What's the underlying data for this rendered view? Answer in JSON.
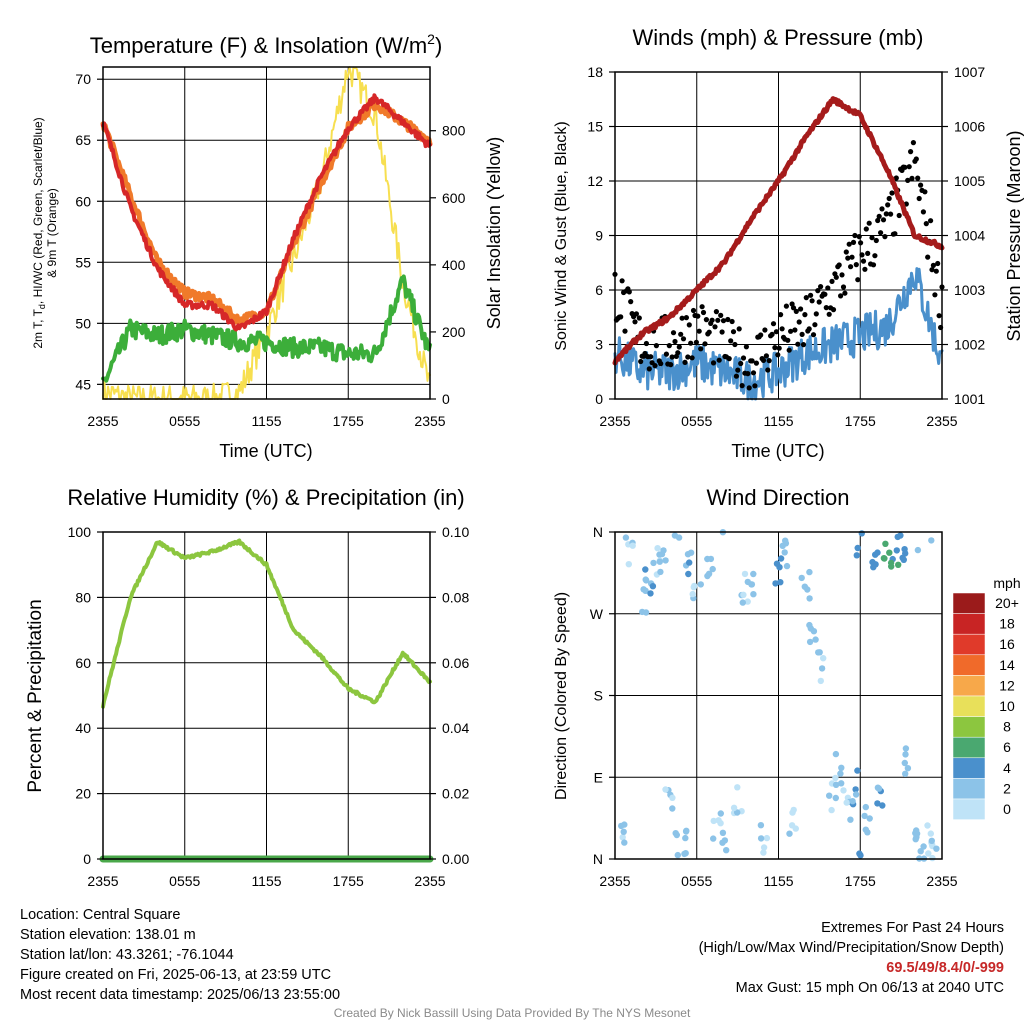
{
  "time_ticks": [
    "2355",
    "0555",
    "1155",
    "1755",
    "2355"
  ],
  "xlabel": "Time (UTC)",
  "panels": {
    "temperature": {
      "title": "Temperature (F) & Insolation (W/m",
      "title_sup": "2",
      "title_close": ")",
      "ylabel_left_lines": [
        "2m T, T",
        "d",
        ", HI/WC (Red, Green, Scarlet/Blue)",
        "& 9m T (Orange)"
      ],
      "ylabel_right": "Solar Insolation (Yellow)",
      "left_ticks": [
        "45",
        "50",
        "55",
        "60",
        "65",
        "70"
      ],
      "right_ticks": [
        "0",
        "200",
        "400",
        "600",
        "800"
      ]
    },
    "winds": {
      "title": "Winds (mph) & Pressure (mb)",
      "ylabel_left": "Sonic Wind & Gust (Blue, Black)",
      "ylabel_right": "Station Pressure (Maroon)",
      "left_ticks": [
        "0",
        "3",
        "6",
        "9",
        "12",
        "15",
        "18"
      ],
      "right_ticks": [
        "1001",
        "1002",
        "1003",
        "1004",
        "1005",
        "1006",
        "1007"
      ]
    },
    "humidity": {
      "title": "Relative Humidity (%) & Precipitation (in)",
      "ylabel_left": "Percent & Precipitation",
      "left_ticks": [
        "0",
        "20",
        "40",
        "60",
        "80",
        "100"
      ],
      "right_ticks": [
        "0.00",
        "0.02",
        "0.04",
        "0.06",
        "0.08",
        "0.10"
      ]
    },
    "direction": {
      "title": "Wind Direction",
      "ylabel_left": "Direction (Colored By Speed)",
      "left_ticks": [
        "N",
        "E",
        "S",
        "W",
        "N"
      ],
      "legend_title": "mph",
      "legend_labels": [
        "20+",
        "18",
        "16",
        "14",
        "12",
        "10",
        "8",
        "6",
        "4",
        "2",
        "0"
      ]
    }
  },
  "colors": {
    "temp_red": "#d62728",
    "temp_orange": "#f07a2a",
    "dewpoint_green": "#3cae3a",
    "solar_yellow": "#f7df50",
    "wind_blue": "#4a90cc",
    "gust_black": "#000000",
    "pressure_maroon": "#a51b1b",
    "humidity_green": "#8cc63f",
    "precip_green": "#4aa84a",
    "speed_scale": [
      "#bfe3f7",
      "#8cc3e8",
      "#4a90cc",
      "#4aa870",
      "#8cc63f",
      "#e8e05a",
      "#f7a84a",
      "#f06a2a",
      "#e03a2a",
      "#c82424",
      "#9b1b1b"
    ]
  },
  "chart_data": [
    {
      "type": "line",
      "title": "Temperature (F) & Insolation (W/m2)",
      "xlabel": "Time (UTC)",
      "ylabel": "2m T, Td, HI/WC (Red, Green, Scarlet/Blue) & 9m T (Orange)",
      "y2label": "Solar Insolation (Yellow)",
      "x": [
        "2355",
        "0155",
        "0355",
        "0555",
        "0755",
        "0955",
        "1155",
        "1355",
        "1555",
        "1755",
        "1955",
        "2155",
        "2355"
      ],
      "ylim": [
        43.8,
        71
      ],
      "y2lim": [
        0,
        990
      ],
      "series": [
        {
          "name": "2m T",
          "color": "red",
          "axis": "left",
          "values": [
            66.5,
            59.5,
            54.5,
            51.5,
            51.5,
            49.5,
            51,
            57,
            62,
            66,
            68.5,
            66.5,
            64.5
          ]
        },
        {
          "name": "9m T",
          "color": "orange",
          "axis": "left",
          "values": [
            66.5,
            60.5,
            55,
            52.5,
            52,
            50.2,
            51,
            56.5,
            61.5,
            66,
            68,
            66.5,
            65
          ]
        },
        {
          "name": "Td",
          "color": "green",
          "axis": "left",
          "values": [
            45,
            49.5,
            49,
            49.5,
            49,
            48.5,
            48.5,
            48,
            48,
            47.5,
            47.5,
            53.5,
            47.5
          ]
        },
        {
          "name": "Solar Insolation",
          "color": "yellow",
          "axis": "right",
          "values": [
            20,
            0,
            0,
            0,
            0,
            20,
            200,
            420,
            650,
            990,
            850,
            350,
            30
          ]
        }
      ]
    },
    {
      "type": "line",
      "title": "Winds (mph) & Pressure (mb)",
      "xlabel": "Time (UTC)",
      "ylabel": "Sonic Wind & Gust (Blue, Black)",
      "y2label": "Station Pressure (Maroon)",
      "x": [
        "2355",
        "0155",
        "0355",
        "0555",
        "0755",
        "0955",
        "1155",
        "1355",
        "1555",
        "1755",
        "1955",
        "2155",
        "2355"
      ],
      "ylim": [
        0,
        18
      ],
      "y2lim": [
        1001,
        1007
      ],
      "series": [
        {
          "name": "Sonic Wind",
          "color": "blue",
          "axis": "left",
          "values": [
            2.5,
            1.5,
            1.5,
            2,
            1.5,
            1,
            1.5,
            2.5,
            3,
            3.5,
            4,
            7,
            2
          ]
        },
        {
          "name": "Gust",
          "color": "black",
          "axis": "left",
          "values": [
            6,
            3,
            3,
            4,
            3,
            2,
            3.5,
            4,
            6,
            8,
            9.5,
            13,
            5
          ]
        },
        {
          "name": "Station Pressure",
          "color": "maroon",
          "axis": "right",
          "values": [
            1001.7,
            1002.2,
            1002.5,
            1003,
            1003.5,
            1004.3,
            1005,
            1005.8,
            1006.5,
            1006.2,
            1005.2,
            1004,
            1003.8
          ]
        }
      ]
    },
    {
      "type": "line",
      "title": "Relative Humidity (%) & Precipitation (in)",
      "ylabel": "Percent & Precipitation",
      "x": [
        "2355",
        "0155",
        "0355",
        "0555",
        "0755",
        "0955",
        "1155",
        "1355",
        "1555",
        "1755",
        "1955",
        "2155",
        "2355"
      ],
      "ylim": [
        0,
        100
      ],
      "y2lim": [
        0,
        0.1
      ],
      "series": [
        {
          "name": "Relative Humidity",
          "color": "light green",
          "axis": "left",
          "values": [
            47,
            80,
            97,
            92,
            94,
            97,
            90,
            70,
            62,
            52,
            48,
            63,
            54
          ]
        },
        {
          "name": "Precipitation",
          "color": "green",
          "axis": "right",
          "values": [
            0,
            0,
            0,
            0,
            0,
            0,
            0,
            0,
            0,
            0,
            0,
            0,
            0
          ]
        }
      ]
    },
    {
      "type": "scatter",
      "title": "Wind Direction",
      "ylabel": "Direction (Colored By Speed)",
      "y_ticks": [
        "N",
        "E",
        "S",
        "W",
        "N"
      ],
      "color_scale_label": "mph",
      "series": [
        {
          "name": "Direction",
          "points": [
            [
              0.5,
              30,
              1
            ],
            [
              1,
              340,
              1
            ],
            [
              2,
              290,
              2
            ],
            [
              2.5,
              305,
              3
            ],
            [
              3,
              330,
              1
            ],
            [
              3.5,
              320,
              2
            ],
            [
              4,
              60,
              1
            ],
            [
              4.5,
              10,
              1
            ],
            [
              5,
              20,
              2
            ],
            [
              5.5,
              320,
              3
            ],
            [
              6,
              300,
              1
            ],
            [
              7,
              330,
              2
            ],
            [
              7.5,
              40,
              1
            ],
            [
              8,
              15,
              2
            ],
            [
              9,
              60,
              1
            ],
            [
              9.5,
              300,
              1
            ],
            [
              10,
              310,
              2
            ],
            [
              11,
              20,
              1
            ],
            [
              12,
              320,
              3
            ],
            [
              12.5,
              340,
              2
            ],
            [
              13,
              40,
              1
            ],
            [
              14,
              300,
              2
            ],
            [
              14.5,
              250,
              2
            ],
            [
              15,
              210,
              1
            ],
            [
              16,
              70,
              1
            ],
            [
              16.5,
              100,
              2
            ],
            [
              17,
              60,
              1
            ],
            [
              17.5,
              80,
              3
            ],
            [
              18,
              350,
              4
            ],
            [
              18.5,
              45,
              2
            ],
            [
              19,
              330,
              4
            ],
            [
              19.5,
              60,
              3
            ],
            [
              20,
              340,
              6
            ],
            [
              20.5,
              335,
              5
            ],
            [
              21,
              345,
              4
            ],
            [
              21.5,
              110,
              2
            ],
            [
              22,
              30,
              2
            ],
            [
              22.5,
              355,
              2
            ],
            [
              23,
              25,
              1
            ],
            [
              23.5,
              5,
              1
            ]
          ]
        }
      ]
    }
  ],
  "info": {
    "location": "Location: Central Square",
    "elevation": "Station elevation: 138.01 m",
    "latlon": "Station lat/lon: 43.3261; -76.1044",
    "created": "Figure created on Fri, 2025-06-13, at 23:59 UTC",
    "recent": "Most recent data timestamp: 2025/06/13 23:55:00",
    "extremes_title": "Extremes For Past 24 Hours",
    "extremes_keys": "(High/Low/Max Wind/Precipitation/Snow Depth)",
    "extremes_values": "69.5/49/8.4/0/-999",
    "max_gust": "Max Gust: 15 mph On 06/13 at 2040 UTC"
  },
  "credit": "Created By Nick Bassill Using Data Provided By The NYS Mesonet"
}
